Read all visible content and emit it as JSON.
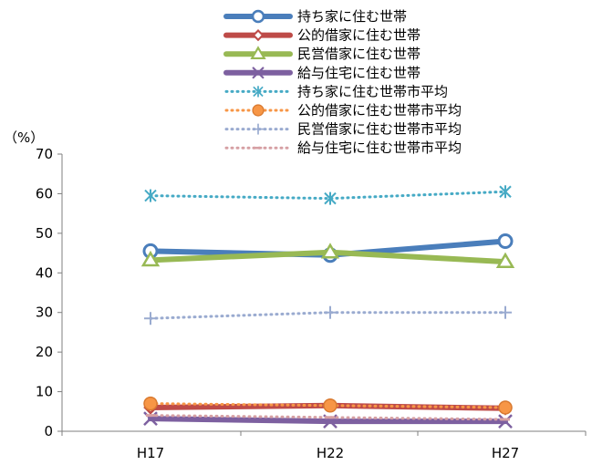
{
  "chart_data": {
    "type": "line",
    "y_unit_label": "（%）",
    "categories": [
      "H17",
      "H22",
      "H27"
    ],
    "ylim": [
      0,
      70
    ],
    "yticks": [
      0,
      10,
      20,
      30,
      40,
      50,
      60,
      70
    ],
    "grid": false,
    "legend_position": "top-center",
    "series": [
      {
        "name": "持ち家に住む世帯",
        "values": [
          45.5,
          44.5,
          48.0
        ],
        "color": "#4a7ebb",
        "style": "solid",
        "marker": "circle"
      },
      {
        "name": "公的借家に住む世帯",
        "values": [
          6.0,
          6.5,
          5.8
        ],
        "color": "#be4b48",
        "style": "solid",
        "marker": "diamond"
      },
      {
        "name": "民営借家に住む世帯",
        "values": [
          43.2,
          45.2,
          42.8
        ],
        "color": "#98b954",
        "style": "solid",
        "marker": "triangle"
      },
      {
        "name": "給与住宅に住む世帯",
        "values": [
          3.2,
          2.5,
          2.5
        ],
        "color": "#7d60a0",
        "style": "solid",
        "marker": "x"
      },
      {
        "name": "持ち家に住む世帯市平均",
        "values": [
          59.5,
          58.8,
          60.5
        ],
        "color": "#46aac5",
        "style": "dotted",
        "marker": "asterisk"
      },
      {
        "name": "公的借家に住む世帯市平均",
        "values": [
          7.0,
          6.5,
          6.0
        ],
        "color": "#f79646",
        "style": "dotted",
        "marker": "circle-filled"
      },
      {
        "name": "民営借家に住む世帯市平均",
        "values": [
          28.5,
          30.0,
          30.0
        ],
        "color": "#9aabd0",
        "style": "dotted",
        "marker": "plus"
      },
      {
        "name": "給与住宅に住む世帯市平均",
        "values": [
          4.0,
          3.5,
          3.0
        ],
        "color": "#d6a0a4",
        "style": "dotted",
        "marker": "dash"
      }
    ]
  }
}
